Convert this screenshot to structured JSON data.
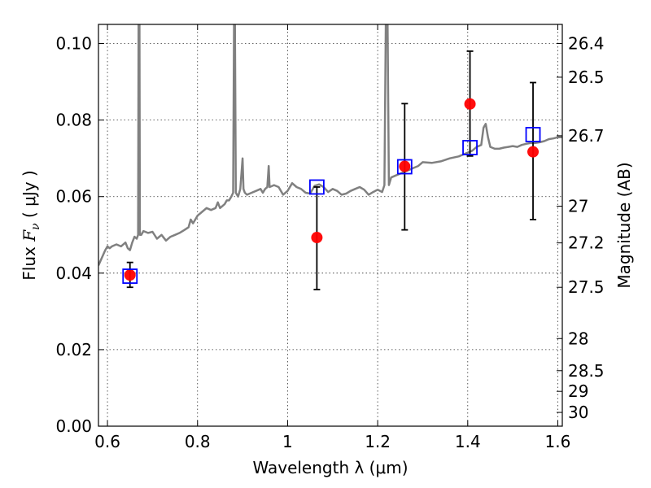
{
  "chart_data": {
    "type": "scatter",
    "xlabel": "Wavelength  λ (μm)",
    "ylabel_left": "Flux  Fν  ( μJy )",
    "ylabel_left_parts": {
      "prefix": "Flux  ",
      "symbol": "F",
      "subscript": "ν",
      "suffix": "  ( μJy )"
    },
    "ylabel_right": "Magnitude (AB)",
    "xlim": [
      0.58,
      1.61
    ],
    "ylim": [
      0.0,
      0.105
    ],
    "grid": true,
    "x_ticks": [
      {
        "value": 0.6,
        "label": "0.6"
      },
      {
        "value": 0.8,
        "label": "0.8"
      },
      {
        "value": 1.0,
        "label": "1"
      },
      {
        "value": 1.2,
        "label": "1.2"
      },
      {
        "value": 1.4,
        "label": "1.4"
      },
      {
        "value": 1.6,
        "label": "1.6"
      }
    ],
    "y_ticks": [
      {
        "value": 0.0,
        "label": "0.00"
      },
      {
        "value": 0.02,
        "label": "0.02"
      },
      {
        "value": 0.04,
        "label": "0.04"
      },
      {
        "value": 0.06,
        "label": "0.06"
      },
      {
        "value": 0.08,
        "label": "0.08"
      },
      {
        "value": 0.1,
        "label": "0.10"
      }
    ],
    "right_ticks": [
      {
        "flux": 0.1,
        "label": "26.4"
      },
      {
        "flux": 0.0912,
        "label": "26.5"
      },
      {
        "flux": 0.0759,
        "label": "26.7"
      },
      {
        "flux": 0.0575,
        "label": "27"
      },
      {
        "flux": 0.0479,
        "label": "27.2"
      },
      {
        "flux": 0.0363,
        "label": "27.5"
      },
      {
        "flux": 0.0229,
        "label": "28"
      },
      {
        "flux": 0.0145,
        "label": "28.5"
      },
      {
        "flux": 0.0091,
        "label": "29"
      },
      {
        "flux": 0.0036,
        "label": "30"
      }
    ],
    "series": [
      {
        "kind": "spectrum",
        "color": "#808080",
        "points": [
          [
            0.58,
            0.042
          ],
          [
            0.595,
            0.046
          ],
          [
            0.6,
            0.047
          ],
          [
            0.605,
            0.0465
          ],
          [
            0.61,
            0.047
          ],
          [
            0.62,
            0.0475
          ],
          [
            0.63,
            0.047
          ],
          [
            0.64,
            0.048
          ],
          [
            0.645,
            0.0465
          ],
          [
            0.65,
            0.046
          ],
          [
            0.655,
            0.048
          ],
          [
            0.66,
            0.0495
          ],
          [
            0.665,
            0.049
          ],
          [
            0.668,
            0.05
          ],
          [
            0.669,
            0.105
          ],
          [
            0.671,
            0.105
          ],
          [
            0.672,
            0.05
          ],
          [
            0.675,
            0.05
          ],
          [
            0.68,
            0.051
          ],
          [
            0.69,
            0.0505
          ],
          [
            0.7,
            0.0508
          ],
          [
            0.71,
            0.049
          ],
          [
            0.72,
            0.05
          ],
          [
            0.73,
            0.0485
          ],
          [
            0.74,
            0.0495
          ],
          [
            0.75,
            0.05
          ],
          [
            0.76,
            0.0505
          ],
          [
            0.77,
            0.0512
          ],
          [
            0.78,
            0.052
          ],
          [
            0.785,
            0.054
          ],
          [
            0.79,
            0.053
          ],
          [
            0.8,
            0.055
          ],
          [
            0.81,
            0.056
          ],
          [
            0.82,
            0.057
          ],
          [
            0.83,
            0.0565
          ],
          [
            0.84,
            0.057
          ],
          [
            0.845,
            0.0585
          ],
          [
            0.85,
            0.057
          ],
          [
            0.86,
            0.058
          ],
          [
            0.865,
            0.059
          ],
          [
            0.87,
            0.059
          ],
          [
            0.875,
            0.06
          ],
          [
            0.879,
            0.061
          ],
          [
            0.881,
            0.105
          ],
          [
            0.883,
            0.105
          ],
          [
            0.885,
            0.061
          ],
          [
            0.89,
            0.06
          ],
          [
            0.895,
            0.062
          ],
          [
            0.9,
            0.07
          ],
          [
            0.902,
            0.062
          ],
          [
            0.905,
            0.061
          ],
          [
            0.91,
            0.0605
          ],
          [
            0.92,
            0.061
          ],
          [
            0.93,
            0.0615
          ],
          [
            0.94,
            0.062
          ],
          [
            0.945,
            0.061
          ],
          [
            0.95,
            0.062
          ],
          [
            0.955,
            0.0625
          ],
          [
            0.958,
            0.068
          ],
          [
            0.96,
            0.0625
          ],
          [
            0.97,
            0.063
          ],
          [
            0.98,
            0.0625
          ],
          [
            0.99,
            0.0605
          ],
          [
            1.0,
            0.0615
          ],
          [
            1.01,
            0.0635
          ],
          [
            1.02,
            0.0625
          ],
          [
            1.03,
            0.062
          ],
          [
            1.04,
            0.061
          ],
          [
            1.05,
            0.0608
          ],
          [
            1.06,
            0.0628
          ],
          [
            1.07,
            0.0632
          ],
          [
            1.08,
            0.0625
          ],
          [
            1.09,
            0.0612
          ],
          [
            1.1,
            0.062
          ],
          [
            1.11,
            0.0615
          ],
          [
            1.12,
            0.0605
          ],
          [
            1.13,
            0.0608
          ],
          [
            1.14,
            0.0615
          ],
          [
            1.15,
            0.062
          ],
          [
            1.16,
            0.0625
          ],
          [
            1.17,
            0.0618
          ],
          [
            1.18,
            0.0605
          ],
          [
            1.19,
            0.0612
          ],
          [
            1.2,
            0.0618
          ],
          [
            1.21,
            0.0612
          ],
          [
            1.215,
            0.063
          ],
          [
            1.218,
            0.105
          ],
          [
            1.222,
            0.105
          ],
          [
            1.225,
            0.063
          ],
          [
            1.23,
            0.065
          ],
          [
            1.24,
            0.0655
          ],
          [
            1.25,
            0.066
          ],
          [
            1.26,
            0.0665
          ],
          [
            1.27,
            0.067
          ],
          [
            1.28,
            0.0675
          ],
          [
            1.29,
            0.068
          ],
          [
            1.3,
            0.069
          ],
          [
            1.32,
            0.0688
          ],
          [
            1.34,
            0.0692
          ],
          [
            1.36,
            0.07
          ],
          [
            1.38,
            0.0705
          ],
          [
            1.4,
            0.0715
          ],
          [
            1.41,
            0.072
          ],
          [
            1.42,
            0.073
          ],
          [
            1.43,
            0.0735
          ],
          [
            1.435,
            0.078
          ],
          [
            1.44,
            0.079
          ],
          [
            1.445,
            0.0755
          ],
          [
            1.45,
            0.073
          ],
          [
            1.46,
            0.0725
          ],
          [
            1.47,
            0.0725
          ],
          [
            1.48,
            0.0728
          ],
          [
            1.49,
            0.073
          ],
          [
            1.5,
            0.0732
          ],
          [
            1.51,
            0.073
          ],
          [
            1.52,
            0.0735
          ],
          [
            1.53,
            0.0738
          ],
          [
            1.54,
            0.074
          ],
          [
            1.55,
            0.074
          ],
          [
            1.56,
            0.0742
          ],
          [
            1.57,
            0.0745
          ],
          [
            1.58,
            0.075
          ],
          [
            1.59,
            0.0752
          ],
          [
            1.6,
            0.0755
          ],
          [
            1.61,
            0.0755
          ]
        ]
      },
      {
        "kind": "observed",
        "color": "#ff0000",
        "points": [
          {
            "x": 0.65,
            "y": 0.0395,
            "yerr_low": 0.0363,
            "yerr_high": 0.0428
          },
          {
            "x": 1.065,
            "y": 0.0493,
            "yerr_low": 0.0357,
            "yerr_high": 0.0625
          },
          {
            "x": 1.26,
            "y": 0.0679,
            "yerr_low": 0.0513,
            "yerr_high": 0.0843
          },
          {
            "x": 1.405,
            "y": 0.0842,
            "yerr_low": 0.0706,
            "yerr_high": 0.098
          },
          {
            "x": 1.545,
            "y": 0.0717,
            "yerr_low": 0.054,
            "yerr_high": 0.0898
          }
        ]
      },
      {
        "kind": "model",
        "color": "#0000ff",
        "points": [
          {
            "x": 0.65,
            "y": 0.0392
          },
          {
            "x": 1.065,
            "y": 0.0625
          },
          {
            "x": 1.26,
            "y": 0.0678
          },
          {
            "x": 1.405,
            "y": 0.0728
          },
          {
            "x": 1.545,
            "y": 0.0762
          }
        ]
      }
    ]
  }
}
